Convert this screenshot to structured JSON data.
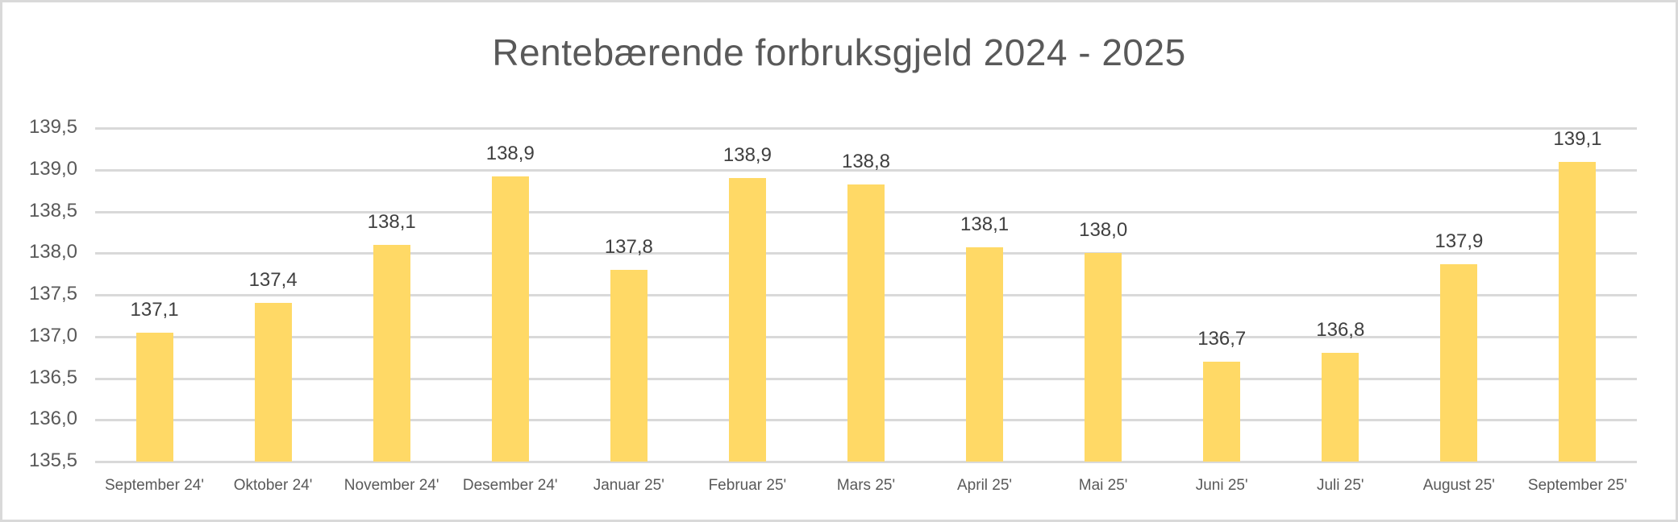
{
  "chart_data": {
    "type": "bar",
    "title": "Rentebærende forbruksgjeld 2024 - 2025",
    "xlabel": "",
    "ylabel": "",
    "categories": [
      "September 24'",
      "Oktober 24'",
      "November 24'",
      "Desember 24'",
      "Januar 25'",
      "Februar 25'",
      "Mars 25'",
      "April 25'",
      "Mai 25'",
      "Juni 25'",
      "Juli 25'",
      "August 25'",
      "September 25'"
    ],
    "values": [
      137.05,
      137.4,
      138.1,
      138.92,
      137.8,
      138.9,
      138.82,
      138.07,
      138.0,
      136.7,
      136.8,
      137.87,
      139.09
    ],
    "data_labels": [
      "137,1",
      "137,4",
      "138,1",
      "138,9",
      "137,8",
      "138,9",
      "138,8",
      "138,1",
      "138,0",
      "136,7",
      "136,8",
      "137,9",
      "139,1"
    ],
    "ylim": [
      135.5,
      139.5
    ],
    "yticks": [
      139.5,
      139.0,
      138.5,
      138.0,
      137.5,
      137.0,
      136.5,
      136.0,
      135.5
    ],
    "ytick_labels": [
      "139,5",
      "139,0",
      "138,5",
      "138,0",
      "137,5",
      "137,0",
      "136,5",
      "136,0",
      "135,5"
    ],
    "grid": true,
    "legend": "none",
    "colors": {
      "bar": "#FFD966",
      "grid": "#D9D9D9",
      "text": "#595959",
      "data_label": "#404040"
    }
  }
}
